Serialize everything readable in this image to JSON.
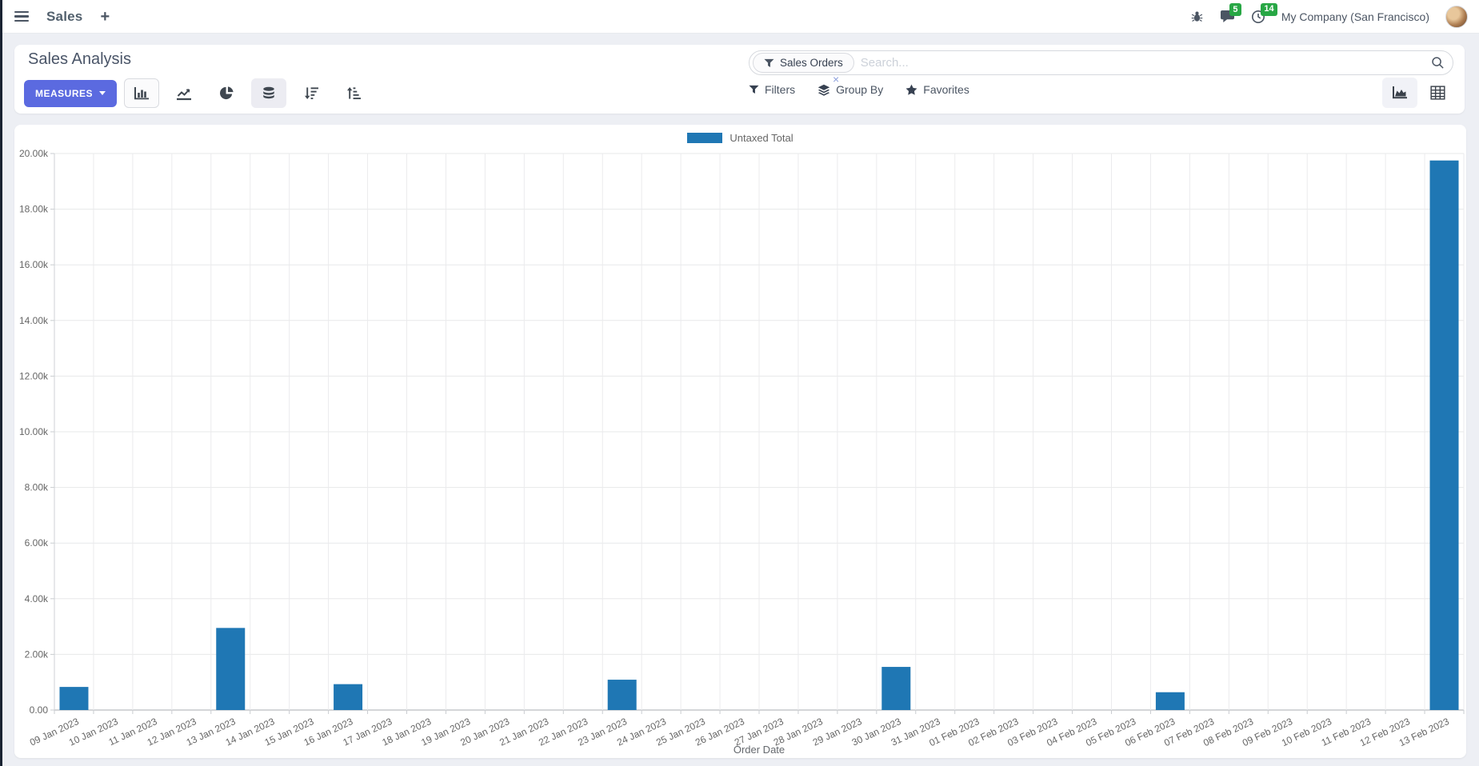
{
  "navbar": {
    "app_label": "Sales",
    "plus_glyph": "+",
    "message_count": "5",
    "activity_count": "14",
    "company": "My Company (San Francisco)"
  },
  "control_panel": {
    "title": "Sales Analysis",
    "measures_label": "MEASURES",
    "search_facet": "Sales Orders",
    "search_placeholder": "Search...",
    "facet_remove_glyph": "×",
    "filters_label": "Filters",
    "group_by_label": "Group By",
    "favorites_label": "Favorites"
  },
  "colors": {
    "accent": "#5b6ae0",
    "bar": "#1f77b4",
    "badge_green": "#28a745"
  },
  "chart_data": {
    "type": "bar",
    "title": "",
    "xlabel": "Order Date",
    "ylabel": "",
    "legend_position": "top",
    "grid": true,
    "ylim": [
      0,
      20000
    ],
    "y_tick_step": 2000,
    "y_tick_labels": [
      "0.00",
      "2.00k",
      "4.00k",
      "6.00k",
      "8.00k",
      "10.00k",
      "12.00k",
      "14.00k",
      "16.00k",
      "18.00k",
      "20.00k"
    ],
    "categories": [
      "09 Jan 2023",
      "10 Jan 2023",
      "11 Jan 2023",
      "12 Jan 2023",
      "13 Jan 2023",
      "14 Jan 2023",
      "15 Jan 2023",
      "16 Jan 2023",
      "17 Jan 2023",
      "18 Jan 2023",
      "19 Jan 2023",
      "20 Jan 2023",
      "21 Jan 2023",
      "22 Jan 2023",
      "23 Jan 2023",
      "24 Jan 2023",
      "25 Jan 2023",
      "26 Jan 2023",
      "27 Jan 2023",
      "28 Jan 2023",
      "29 Jan 2023",
      "30 Jan 2023",
      "31 Jan 2023",
      "01 Feb 2023",
      "02 Feb 2023",
      "03 Feb 2023",
      "04 Feb 2023",
      "05 Feb 2023",
      "06 Feb 2023",
      "07 Feb 2023",
      "08 Feb 2023",
      "09 Feb 2023",
      "10 Feb 2023",
      "11 Feb 2023",
      "12 Feb 2023",
      "13 Feb 2023"
    ],
    "legend": [
      {
        "label": "Untaxed Total",
        "color": "#1f77b4"
      }
    ],
    "series": [
      {
        "name": "Untaxed Total",
        "color": "#1f77b4",
        "values": [
          830,
          0,
          0,
          0,
          2950,
          0,
          0,
          930,
          0,
          0,
          0,
          0,
          0,
          0,
          1090,
          0,
          0,
          0,
          0,
          0,
          0,
          1550,
          0,
          0,
          0,
          0,
          0,
          0,
          640,
          0,
          0,
          0,
          0,
          0,
          0,
          19750
        ]
      }
    ]
  }
}
